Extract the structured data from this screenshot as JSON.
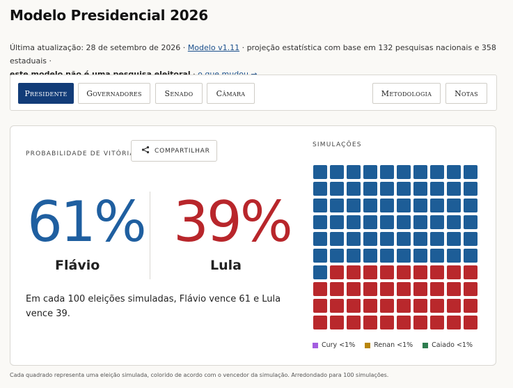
{
  "page": {
    "title": "Modelo Presidencial 2026",
    "meta_prefix": "Última atualização: 28 de setembro de 2026 · ",
    "meta_link": "Modelo v1.11",
    "meta_mid": " · projeção estatística com base em 132 pesquisas nacionais e 358 estaduais · ",
    "meta_bold": "este modelo não é uma pesquisa eleitoral",
    "meta_sep": " · ",
    "meta_changes": "o que mudou →"
  },
  "tabs": {
    "left": [
      "Presidente",
      "Governadores",
      "Senado",
      "Câmara"
    ],
    "right": [
      "Metodologia",
      "Notas"
    ],
    "active": "Presidente"
  },
  "forecast": {
    "prob_label": "Probabilidade de vitória",
    "share_label": "COMPARTILHAR",
    "left_pct": "61%",
    "left_name": "Flávio",
    "right_pct": "39%",
    "right_name": "Lula",
    "summary": "Em cada 100 eleições simuladas, Flávio vence 61 e Lula vence 39."
  },
  "simulations": {
    "label": "Simulações",
    "total": 100,
    "blue_count": 61,
    "red_count": 39,
    "colors": {
      "blue": "#1d5d97",
      "red": "#b9282c"
    },
    "legend": [
      {
        "name": "Cury <1%",
        "color": "#a35de0"
      },
      {
        "name": "Renan <1%",
        "color": "#b8860b"
      },
      {
        "name": "Caiado <1%",
        "color": "#2e7d4f"
      }
    ]
  },
  "footnote": "Cada quadrado representa uma eleição simulada, colorido de acordo com o vencedor da simulação. Arredondado para 100 simulações."
}
